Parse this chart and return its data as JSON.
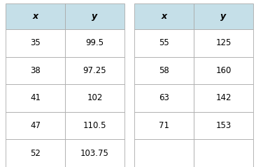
{
  "table1": {
    "headers": [
      "x",
      "y"
    ],
    "rows": [
      [
        "35",
        "99.5"
      ],
      [
        "38",
        "97.25"
      ],
      [
        "41",
        "102"
      ],
      [
        "47",
        "110.5"
      ],
      [
        "52",
        "103.75"
      ]
    ]
  },
  "table2": {
    "headers": [
      "x",
      "y"
    ],
    "rows": [
      [
        "55",
        "125"
      ],
      [
        "58",
        "160"
      ],
      [
        "63",
        "142"
      ],
      [
        "71",
        "153"
      ],
      [
        "",
        ""
      ]
    ]
  },
  "header_color": "#c5dfe8",
  "row_color": "#ffffff",
  "text_color": "#000000",
  "border_color": "#aaaaaa",
  "header_fontsize": 9,
  "cell_fontsize": 8.5,
  "fig_bg": "#ffffff",
  "fig_width": 3.66,
  "fig_height": 2.4,
  "dpi": 100
}
